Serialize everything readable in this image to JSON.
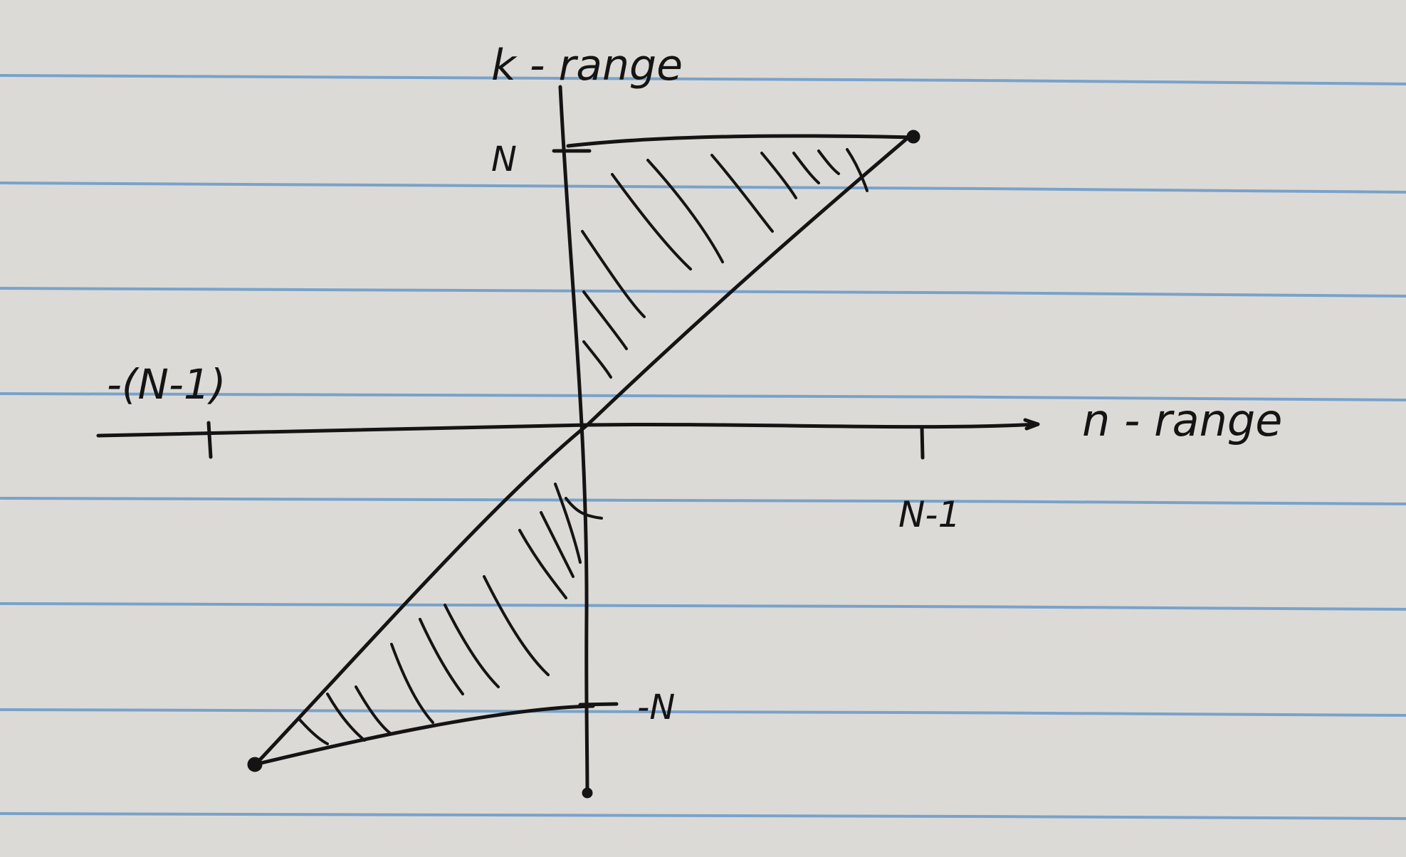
{
  "notebook": {
    "paper_color": "#dcdad6",
    "rule_line_color": "#6d9bc9",
    "ink_color": "#141414"
  },
  "diagram": {
    "y_axis_label": "k - range",
    "x_axis_label": "n - range",
    "y_tick_top_label": "N",
    "y_tick_bottom_label": "-N",
    "x_tick_left_label": "-(N-1)",
    "x_tick_right_label": "N-1"
  }
}
